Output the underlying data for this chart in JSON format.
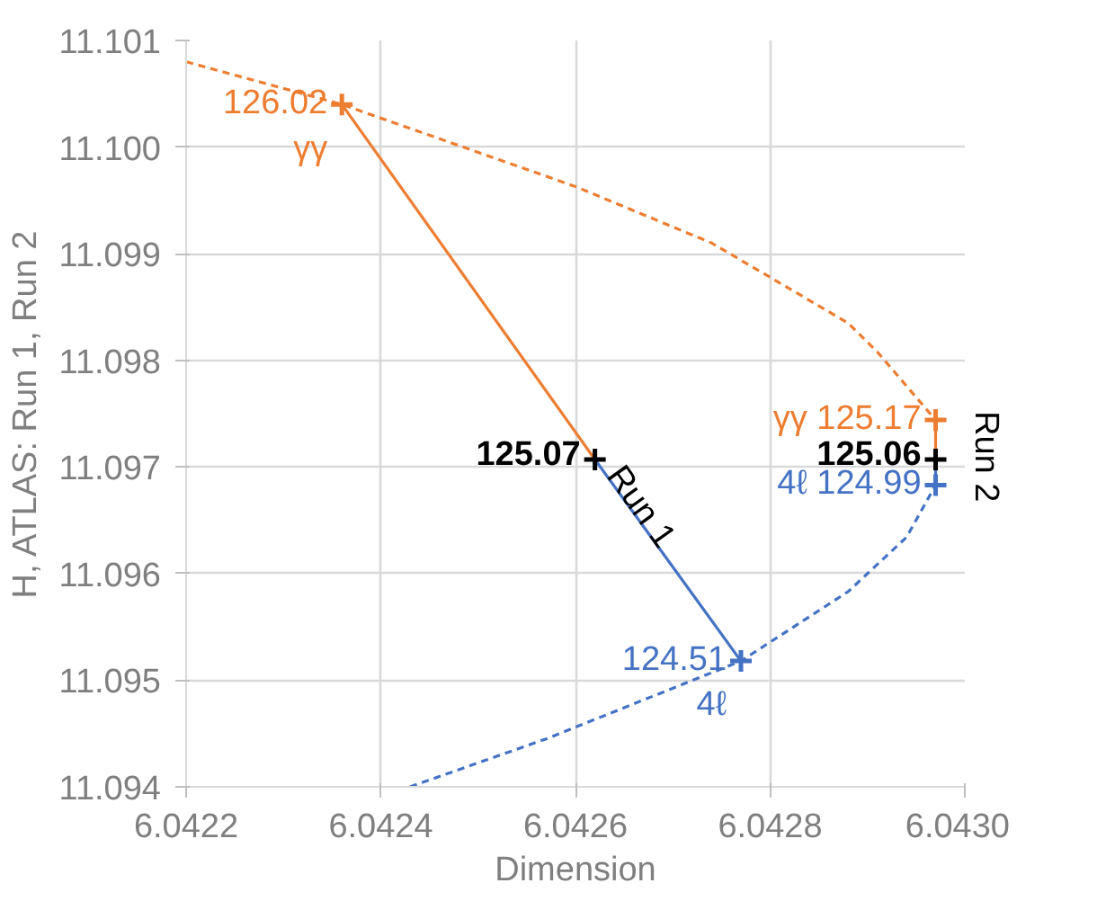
{
  "chart_data": {
    "type": "line",
    "xlabel": "Dimension",
    "ylabel": "H, ATLAS: Run 1, Run 2",
    "xlim": [
      6.0422,
      6.043
    ],
    "xticks": [
      {
        "value": 6.0422,
        "label": "6.0422"
      },
      {
        "value": 6.0424,
        "label": "6.0424"
      },
      {
        "value": 6.0426,
        "label": "6.0426"
      },
      {
        "value": 6.0428,
        "label": "6.0428"
      },
      {
        "value": 6.043,
        "label": "6.0430"
      }
    ],
    "ylim": [
      11.094,
      11.101
    ],
    "yticks": [
      {
        "value": 11.094,
        "label": "11.094"
      },
      {
        "value": 11.095,
        "label": "11.095"
      },
      {
        "value": 11.096,
        "label": "11.096"
      },
      {
        "value": 11.097,
        "label": "11.097"
      },
      {
        "value": 11.098,
        "label": "11.098"
      },
      {
        "value": 11.099,
        "label": "11.099"
      },
      {
        "value": 11.1,
        "label": "11.100"
      },
      {
        "value": 11.101,
        "label": "11.101"
      }
    ],
    "grid": true,
    "legend": false,
    "series": [
      {
        "line_style": "dashed",
        "color": "#ed7d31",
        "x": [
          6.0422,
          6.04236,
          6.0426,
          6.04274,
          6.04288,
          6.04291,
          6.04297
        ],
        "values": [
          11.1008,
          11.1004,
          11.09963,
          11.0991,
          11.09835,
          11.09808,
          11.09744
        ]
      },
      {
        "line_style": "dashed",
        "color": "#4472c4",
        "x": [
          6.04243,
          6.04257,
          6.04277,
          6.04288,
          6.04294,
          6.04297
        ],
        "values": [
          11.094,
          11.09445,
          11.09518,
          11.09583,
          11.09634,
          11.09683
        ]
      },
      {
        "line_style": "solid",
        "color": "#ed7d31",
        "x": [
          6.04236,
          6.04262
        ],
        "values": [
          11.1004,
          11.09707
        ]
      },
      {
        "line_style": "solid",
        "color": "#4472c4",
        "x": [
          6.04262,
          6.04277
        ],
        "values": [
          11.09707,
          11.09518
        ]
      },
      {
        "line_style": "solid",
        "color": "#ed7d31",
        "x": [
          6.04297,
          6.04297
        ],
        "values": [
          11.09744,
          11.09707
        ]
      },
      {
        "line_style": "solid",
        "color": "#4472c4",
        "x": [
          6.04297,
          6.04297
        ],
        "values": [
          11.09707,
          11.09683
        ]
      },
      {
        "type": "scatter",
        "marker": "cross",
        "color": "#ed7d31",
        "x": [
          6.04236,
          6.04297
        ],
        "values": [
          11.1004,
          11.09744
        ]
      },
      {
        "type": "scatter",
        "marker": "cross",
        "color": "#4472c4",
        "x": [
          6.04277,
          6.04297
        ],
        "values": [
          11.09518,
          11.09683
        ]
      },
      {
        "type": "scatter",
        "marker": "cross",
        "name": "Run 1",
        "color": "#000000",
        "x": [
          6.04262
        ],
        "values": [
          11.09707
        ]
      },
      {
        "type": "scatter",
        "marker": "cross",
        "name": "Run 2",
        "color": "#000000",
        "x": [
          6.04297
        ],
        "values": [
          11.09707
        ]
      }
    ],
    "annotations": [
      {
        "text": "126.02\nγγ",
        "x": 6.04236,
        "y": 11.1004
      },
      {
        "text": "γγ 125.17",
        "x": 6.04297,
        "y": 11.09744
      },
      {
        "text": "125.07",
        "x": 6.04262,
        "y": 11.09707
      },
      {
        "text": "125.06",
        "x": 6.04297,
        "y": 11.09707
      },
      {
        "text": "124.51\n4ℓ",
        "x": 6.04277,
        "y": 11.09518
      },
      {
        "text": "4ℓ 124.99",
        "x": 6.04297,
        "y": 11.09683
      }
    ]
  }
}
